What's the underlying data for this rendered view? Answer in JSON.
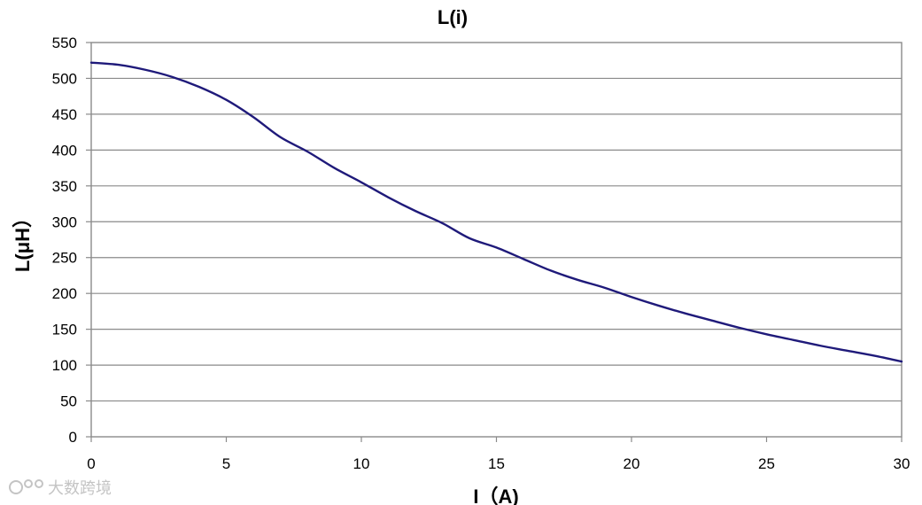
{
  "chart_data": {
    "type": "line",
    "title": "L(i)",
    "xlabel": "I（A)",
    "ylabel": "L(μH）",
    "xlim": [
      0,
      30
    ],
    "ylim": [
      0,
      550
    ],
    "x_ticks": [
      0,
      5,
      10,
      15,
      20,
      25,
      30
    ],
    "y_ticks": [
      0,
      50,
      100,
      150,
      200,
      250,
      300,
      350,
      400,
      450,
      500,
      550
    ],
    "grid": true,
    "legend": "none",
    "colors": {
      "series": "#1f1a7a",
      "grid": "#8a8a8a"
    },
    "series": [
      {
        "x": [
          0,
          1,
          2,
          3,
          4,
          5,
          6,
          7,
          8,
          9,
          10,
          11,
          12,
          13,
          14,
          15,
          16,
          17,
          18,
          19,
          20,
          21,
          22,
          23,
          24,
          25,
          26,
          27,
          28,
          29,
          30
        ],
        "y": [
          522,
          519,
          512,
          502,
          488,
          470,
          446,
          418,
          398,
          375,
          355,
          334,
          315,
          298,
          277,
          264,
          248,
          232,
          219,
          208,
          195,
          183,
          172,
          162,
          152,
          143,
          135,
          127,
          120,
          113,
          105
        ]
      }
    ]
  },
  "watermark": "大数跨境"
}
